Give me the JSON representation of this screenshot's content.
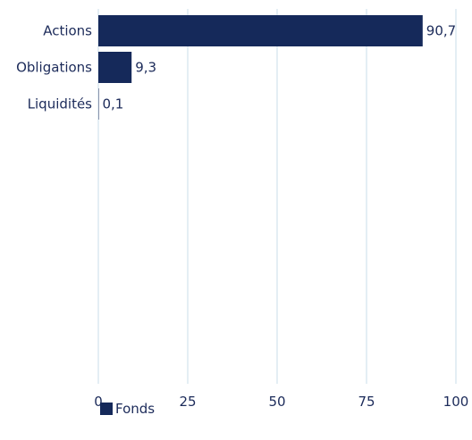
{
  "chart_data": {
    "type": "bar",
    "orientation": "horizontal",
    "categories": [
      "Actions",
      "Obligations",
      "Liquidités"
    ],
    "series": [
      {
        "name": "Fonds",
        "values": [
          90.7,
          9.3,
          0.1
        ],
        "labels": [
          "90,7",
          "9,3",
          "0,1"
        ]
      }
    ],
    "xlim": [
      0,
      100
    ],
    "xticks": [
      0,
      25,
      50,
      75,
      100
    ],
    "grid": true,
    "legend_position": "bottom-left",
    "bar_color": "#15295a",
    "grid_color": "#c9dcea",
    "text_color": "#1c2b5a"
  }
}
